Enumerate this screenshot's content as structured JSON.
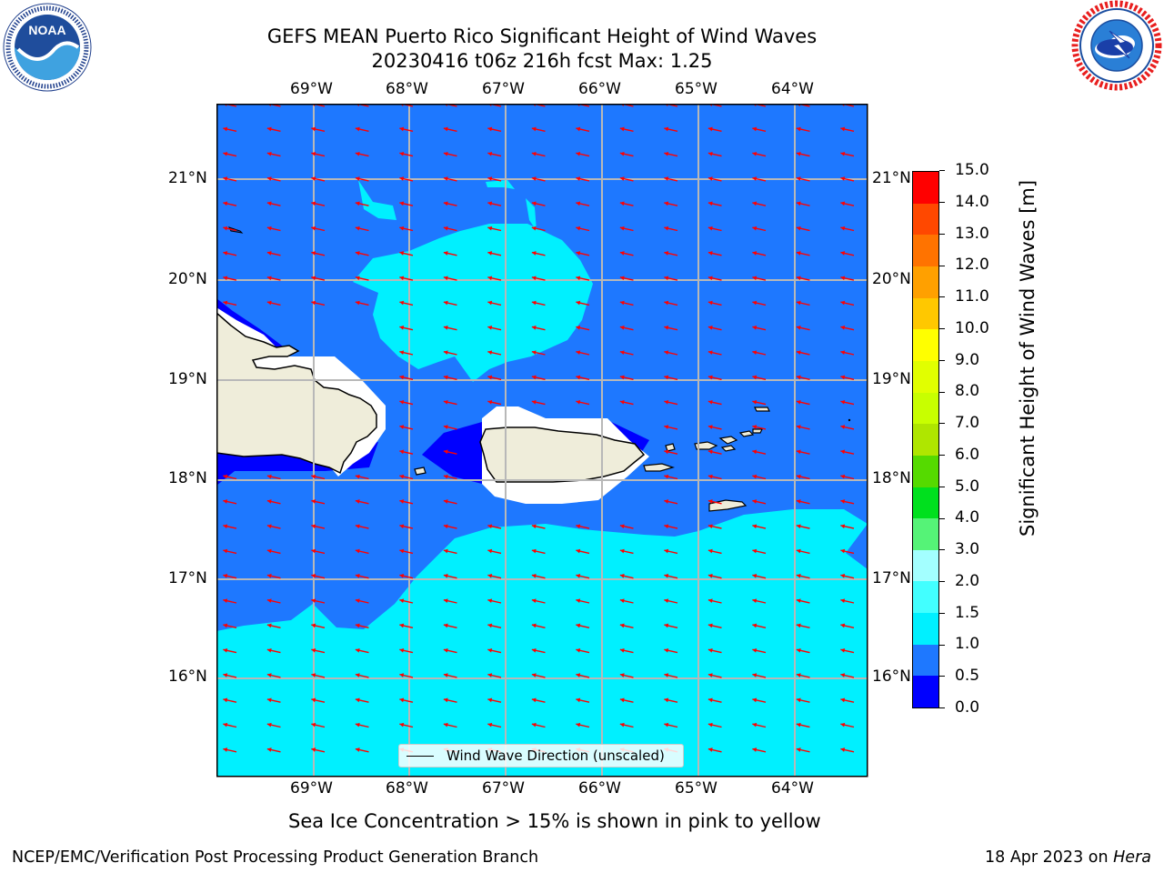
{
  "header": {
    "title_line1": "GEFS MEAN Puerto Rico Significant Height of Wind Waves",
    "title_line2": "20230416 t06z 216h fcst   Max: 1.25"
  },
  "logos": {
    "left": {
      "name": "NOAA",
      "ring_text": "NATIONAL OCEANIC AND ATMOSPHERIC ADMINISTRATION · U.S. DEPARTMENT OF COMMERCE"
    },
    "right": {
      "ring_text": "NATIONAL WEATHER SERVICE"
    }
  },
  "map": {
    "lon_labels": [
      "69°W",
      "68°W",
      "67°W",
      "66°W",
      "65°W",
      "64°W"
    ],
    "lat_labels": [
      "21°N",
      "20°N",
      "19°N",
      "18°N",
      "17°N",
      "16°N"
    ],
    "legend_label": "Wind Wave Direction (unscaled)",
    "max_value": 1.25,
    "arrow_color": "#ff0000",
    "land_color": "#efedda"
  },
  "colorbar": {
    "label": "Significant Height of Wind Waves [m]",
    "ticks": [
      "0.0",
      "0.5",
      "1.0",
      "1.5",
      "2.0",
      "3.0",
      "4.0",
      "5.0",
      "6.0",
      "7.0",
      "8.0",
      "9.0",
      "10.0",
      "11.0",
      "12.0",
      "13.0",
      "14.0",
      "15.0"
    ],
    "colors": [
      "#0000ff",
      "#1e78ff",
      "#00f0ff",
      "#42ffff",
      "#a3ffff",
      "#55f377",
      "#00e01e",
      "#55da00",
      "#afe600",
      "#c8ff00",
      "#e1ff00",
      "#ffff00",
      "#ffc800",
      "#ffa000",
      "#ff7300",
      "#ff4800",
      "#ff0000"
    ]
  },
  "footer": {
    "note": "Sea Ice Concentration > 15% is shown in pink to yellow",
    "left": "NCEP/EMC/Verification Post Processing Product Generation Branch",
    "right_prefix": "18 Apr 2023 on ",
    "right_host": "Hera"
  }
}
